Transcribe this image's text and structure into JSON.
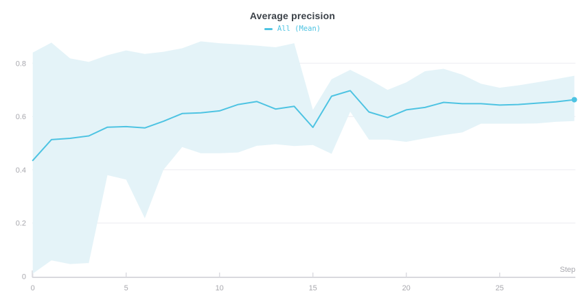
{
  "header": {
    "title": "Average precision"
  },
  "legend": {
    "items": [
      {
        "label": "All (Mean)",
        "marker": "dash-icon",
        "color": "#4dc3e2"
      }
    ]
  },
  "axes": {
    "x": {
      "title": "Step",
      "tick_labels": [
        "0",
        "5",
        "10",
        "15",
        "20",
        "25"
      ],
      "tick_values": [
        0,
        5,
        10,
        15,
        20,
        25
      ]
    },
    "y": {
      "tick_labels": [
        "0",
        "0.2",
        "0.4",
        "0.6",
        "0.8"
      ],
      "tick_values": [
        0,
        0.2,
        0.4,
        0.6,
        0.8
      ]
    }
  },
  "chart_data": {
    "type": "line",
    "title": "Average precision",
    "xlabel": "Step",
    "ylabel": "",
    "grid": "horizontal-only",
    "legend_position": "top-center",
    "xlim": [
      0,
      29.3
    ],
    "ylim": [
      0,
      0.9
    ],
    "x": [
      0,
      1,
      2,
      3,
      4,
      5,
      6,
      7,
      8,
      9,
      10,
      11,
      12,
      13,
      14,
      15,
      16,
      17,
      18,
      19,
      20,
      21,
      22,
      23,
      24,
      25,
      26,
      27,
      28,
      29
    ],
    "series": [
      {
        "name": "All (Mean)",
        "color": "#4dc3e2",
        "values": [
          0.435,
          0.513,
          0.518,
          0.527,
          0.56,
          0.562,
          0.557,
          0.582,
          0.611,
          0.614,
          0.621,
          0.645,
          0.656,
          0.628,
          0.638,
          0.559,
          0.676,
          0.697,
          0.617,
          0.596,
          0.625,
          0.634,
          0.653,
          0.648,
          0.648,
          0.643,
          0.645,
          0.65,
          0.655,
          0.663
        ],
        "last_point_marker": true
      }
    ],
    "band": {
      "name": "All (min/max envelope)",
      "fill": "#e4f3f8",
      "upper": [
        0.84,
        0.877,
        0.818,
        0.805,
        0.83,
        0.848,
        0.835,
        0.843,
        0.856,
        0.882,
        0.875,
        0.871,
        0.866,
        0.86,
        0.875,
        0.625,
        0.74,
        0.775,
        0.74,
        0.7,
        0.728,
        0.77,
        0.779,
        0.757,
        0.723,
        0.708,
        0.717,
        0.728,
        0.74,
        0.753
      ],
      "lower": [
        0.01,
        0.06,
        0.046,
        0.05,
        0.38,
        0.363,
        0.218,
        0.4,
        0.485,
        0.462,
        0.462,
        0.465,
        0.49,
        0.496,
        0.489,
        0.493,
        0.46,
        0.618,
        0.513,
        0.513,
        0.505,
        0.518,
        0.53,
        0.54,
        0.573,
        0.573,
        0.573,
        0.574,
        0.58,
        0.583
      ]
    }
  },
  "colors": {
    "line": "#4dc3e2",
    "band_fill": "#e4f3f8",
    "grid": "#ebebf0",
    "axis_line": "#d9d9de",
    "tick_mark": "#dcdce1",
    "tick_text": "#a8a8ae",
    "title_text": "#3a4047"
  }
}
